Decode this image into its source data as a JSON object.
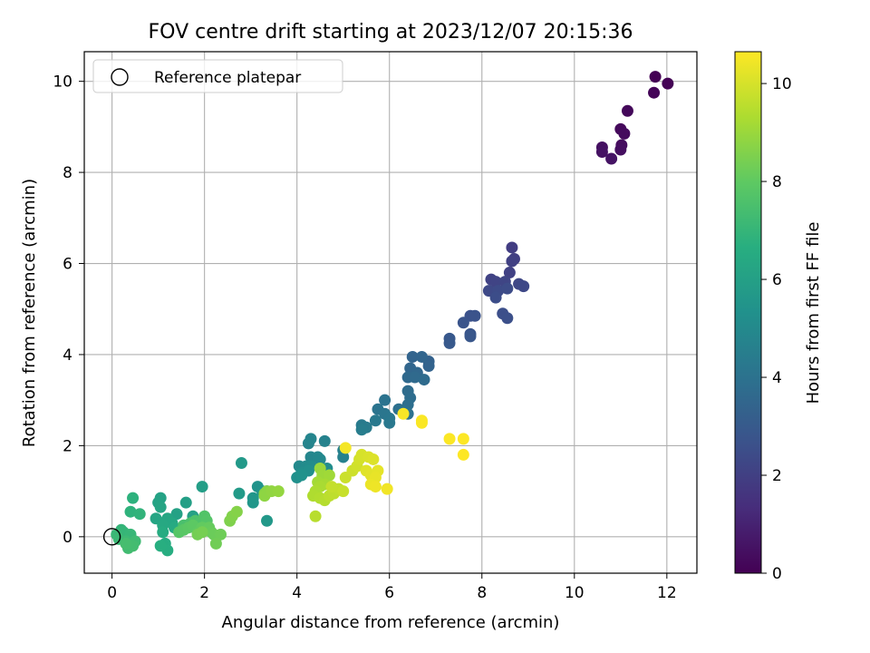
{
  "chart_data": {
    "type": "scatter",
    "title": "FOV centre drift starting at 2023/12/07 20:15:36",
    "xlabel": "Angular distance from reference (arcmin)",
    "ylabel": "Rotation from reference (arcmin)",
    "xlim": [
      -0.6,
      12.65
    ],
    "ylim": [
      -0.8,
      10.65
    ],
    "xticks": [
      0,
      2,
      4,
      6,
      8,
      10,
      12
    ],
    "yticks": [
      0,
      2,
      4,
      6,
      8,
      10
    ],
    "grid": true,
    "legend": {
      "position": "top-left",
      "entries": [
        "Reference platepar"
      ]
    },
    "reference_point": {
      "x": 0,
      "y": 0,
      "label": "Reference platepar"
    },
    "colorbar": {
      "label": "Hours from first FF file",
      "colormap": "viridis",
      "range": [
        0,
        10.65
      ],
      "ticks": [
        0,
        2,
        4,
        6,
        8,
        10
      ]
    },
    "points": [
      [
        11.75,
        10.1,
        0.0
      ],
      [
        12.02,
        9.95,
        0.05
      ],
      [
        11.72,
        9.75,
        0.1
      ],
      [
        11.15,
        9.35,
        0.2
      ],
      [
        11.0,
        8.95,
        0.25
      ],
      [
        11.08,
        8.85,
        0.3
      ],
      [
        11.02,
        8.6,
        0.35
      ],
      [
        11.0,
        8.5,
        0.4
      ],
      [
        10.6,
        8.55,
        0.45
      ],
      [
        10.6,
        8.45,
        0.5
      ],
      [
        10.8,
        8.3,
        0.55
      ],
      [
        8.65,
        6.35,
        1.9
      ],
      [
        8.7,
        6.1,
        1.95
      ],
      [
        8.65,
        6.05,
        2.0
      ],
      [
        8.6,
        5.8,
        2.05
      ],
      [
        8.2,
        5.65,
        2.1
      ],
      [
        8.3,
        5.6,
        2.15
      ],
      [
        8.5,
        5.6,
        2.2
      ],
      [
        8.8,
        5.55,
        2.25
      ],
      [
        8.9,
        5.5,
        2.3
      ],
      [
        8.15,
        5.4,
        2.35
      ],
      [
        8.35,
        5.4,
        2.4
      ],
      [
        8.55,
        5.45,
        2.45
      ],
      [
        8.3,
        5.25,
        2.5
      ],
      [
        8.45,
        4.9,
        2.55
      ],
      [
        8.55,
        4.8,
        2.6
      ],
      [
        7.75,
        4.85,
        2.65
      ],
      [
        7.85,
        4.85,
        2.7
      ],
      [
        7.6,
        4.7,
        2.75
      ],
      [
        7.75,
        4.45,
        2.8
      ],
      [
        7.75,
        4.4,
        2.85
      ],
      [
        7.3,
        4.35,
        2.9
      ],
      [
        7.3,
        4.25,
        2.95
      ],
      [
        6.85,
        3.85,
        3.3
      ],
      [
        6.85,
        3.75,
        3.35
      ],
      [
        6.5,
        3.95,
        3.4
      ],
      [
        6.7,
        3.95,
        3.45
      ],
      [
        6.45,
        3.7,
        3.5
      ],
      [
        6.6,
        3.6,
        3.55
      ],
      [
        6.4,
        3.5,
        3.6
      ],
      [
        6.55,
        3.5,
        3.65
      ],
      [
        6.75,
        3.45,
        3.7
      ],
      [
        6.4,
        3.2,
        3.75
      ],
      [
        6.45,
        3.05,
        3.8
      ],
      [
        6.4,
        2.9,
        3.85
      ],
      [
        6.2,
        2.8,
        3.9
      ],
      [
        6.3,
        2.75,
        3.95
      ],
      [
        6.4,
        2.7,
        4.0
      ],
      [
        5.9,
        3.0,
        4.05
      ],
      [
        5.75,
        2.8,
        4.1
      ],
      [
        5.9,
        2.7,
        4.15
      ],
      [
        6.0,
        2.6,
        4.2
      ],
      [
        6.0,
        2.5,
        4.25
      ],
      [
        5.7,
        2.55,
        4.3
      ],
      [
        5.4,
        2.45,
        4.35
      ],
      [
        5.5,
        2.4,
        4.4
      ],
      [
        5.4,
        2.35,
        4.45
      ],
      [
        5.0,
        1.9,
        4.6
      ],
      [
        5.0,
        1.75,
        4.65
      ],
      [
        4.6,
        2.1,
        4.7
      ],
      [
        4.25,
        2.05,
        4.75
      ],
      [
        4.3,
        2.15,
        4.8
      ],
      [
        4.3,
        1.75,
        4.85
      ],
      [
        4.45,
        1.75,
        4.9
      ],
      [
        4.5,
        1.7,
        4.95
      ],
      [
        4.05,
        1.55,
        5.0
      ],
      [
        4.2,
        1.55,
        5.05
      ],
      [
        4.3,
        1.55,
        5.1
      ],
      [
        4.65,
        1.5,
        5.15
      ],
      [
        4.1,
        1.4,
        5.2
      ],
      [
        4.25,
        1.45,
        5.25
      ],
      [
        4.0,
        1.3,
        5.3
      ],
      [
        4.1,
        1.35,
        5.35
      ],
      [
        3.15,
        1.1,
        5.4
      ],
      [
        3.25,
        1.0,
        5.45
      ],
      [
        3.35,
        1.0,
        5.5
      ],
      [
        3.05,
        0.85,
        5.55
      ],
      [
        3.05,
        0.75,
        5.6
      ],
      [
        3.35,
        0.35,
        5.65
      ],
      [
        2.8,
        1.62,
        5.7
      ],
      [
        2.75,
        0.95,
        5.75
      ],
      [
        1.95,
        1.1,
        5.9
      ],
      [
        1.6,
        0.75,
        5.95
      ],
      [
        1.75,
        0.45,
        6.0
      ],
      [
        1.4,
        0.5,
        6.05
      ],
      [
        1.05,
        0.85,
        6.1
      ],
      [
        1.0,
        0.75,
        6.15
      ],
      [
        1.05,
        0.65,
        6.2
      ],
      [
        0.95,
        0.4,
        6.25
      ],
      [
        1.2,
        0.4,
        6.3
      ],
      [
        1.3,
        0.3,
        6.35
      ],
      [
        1.1,
        0.25,
        6.4
      ],
      [
        1.35,
        0.2,
        6.45
      ],
      [
        1.1,
        0.1,
        6.5
      ],
      [
        1.15,
        -0.15,
        6.55
      ],
      [
        1.2,
        -0.3,
        6.6
      ],
      [
        1.05,
        -0.2,
        6.65
      ],
      [
        0.45,
        0.85,
        6.8
      ],
      [
        0.4,
        0.55,
        6.85
      ],
      [
        0.6,
        0.5,
        6.9
      ],
      [
        0.2,
        0.15,
        6.95
      ],
      [
        0.25,
        0.1,
        7.0
      ],
      [
        0.4,
        0.05,
        7.05
      ],
      [
        0.1,
        0.05,
        7.1
      ],
      [
        0.15,
        -0.05,
        7.15
      ],
      [
        0.3,
        -0.1,
        7.2
      ],
      [
        0.5,
        -0.1,
        7.25
      ],
      [
        0.35,
        -0.25,
        7.3
      ],
      [
        0.45,
        -0.2,
        7.35
      ],
      [
        0.3,
        -0.15,
        7.4
      ],
      [
        1.55,
        0.25,
        7.5
      ],
      [
        1.7,
        0.3,
        7.55
      ],
      [
        1.8,
        0.35,
        7.6
      ],
      [
        1.9,
        0.3,
        7.65
      ],
      [
        2.0,
        0.45,
        7.7
      ],
      [
        2.05,
        0.35,
        7.75
      ],
      [
        1.45,
        0.1,
        7.8
      ],
      [
        1.55,
        0.15,
        7.85
      ],
      [
        1.65,
        0.2,
        7.9
      ],
      [
        1.75,
        0.25,
        7.95
      ],
      [
        1.85,
        0.1,
        8.0
      ],
      [
        1.95,
        0.2,
        8.05
      ],
      [
        2.1,
        0.2,
        8.1
      ],
      [
        2.15,
        0.1,
        8.15
      ],
      [
        2.2,
        0.05,
        8.2
      ],
      [
        2.35,
        0.05,
        8.25
      ],
      [
        2.25,
        -0.15,
        8.3
      ],
      [
        1.85,
        0.05,
        8.35
      ],
      [
        1.95,
        0.1,
        8.4
      ],
      [
        2.55,
        0.35,
        8.55
      ],
      [
        2.6,
        0.45,
        8.6
      ],
      [
        2.7,
        0.55,
        8.65
      ],
      [
        3.3,
        0.95,
        8.7
      ],
      [
        3.35,
        1.0,
        8.75
      ],
      [
        3.3,
        0.9,
        8.8
      ],
      [
        3.45,
        1.0,
        8.85
      ],
      [
        3.6,
        1.0,
        8.9
      ],
      [
        4.5,
        1.5,
        9.0
      ],
      [
        4.55,
        1.35,
        9.05
      ],
      [
        4.7,
        1.35,
        9.1
      ],
      [
        4.45,
        1.2,
        9.15
      ],
      [
        4.6,
        1.15,
        9.2
      ],
      [
        4.5,
        1.1,
        9.25
      ],
      [
        4.4,
        1.0,
        9.3
      ],
      [
        4.35,
        0.9,
        9.35
      ],
      [
        4.5,
        0.85,
        9.4
      ],
      [
        4.6,
        0.8,
        9.45
      ],
      [
        4.4,
        0.45,
        9.5
      ],
      [
        4.7,
        0.9,
        9.55
      ],
      [
        4.8,
        0.95,
        9.6
      ],
      [
        4.9,
        1.05,
        9.65
      ],
      [
        4.75,
        1.1,
        9.7
      ],
      [
        5.0,
        1.0,
        9.75
      ],
      [
        5.05,
        1.3,
        9.8
      ],
      [
        5.2,
        1.45,
        9.85
      ],
      [
        5.3,
        1.55,
        9.9
      ],
      [
        5.35,
        1.7,
        9.95
      ],
      [
        5.4,
        1.8,
        10.0
      ],
      [
        5.55,
        1.75,
        10.05
      ],
      [
        5.65,
        1.7,
        10.1
      ],
      [
        5.5,
        1.45,
        10.15
      ],
      [
        5.6,
        1.35,
        10.2
      ],
      [
        5.75,
        1.45,
        10.25
      ],
      [
        5.7,
        1.3,
        10.3
      ],
      [
        5.6,
        1.15,
        10.35
      ],
      [
        5.7,
        1.1,
        10.4
      ],
      [
        5.95,
        1.05,
        10.45
      ],
      [
        5.05,
        1.95,
        10.5
      ],
      [
        6.3,
        2.7,
        10.55
      ],
      [
        6.7,
        2.55,
        10.6
      ],
      [
        6.7,
        2.5,
        10.6
      ],
      [
        7.3,
        2.15,
        10.62
      ],
      [
        7.6,
        2.15,
        10.64
      ],
      [
        7.6,
        1.8,
        10.65
      ]
    ]
  }
}
